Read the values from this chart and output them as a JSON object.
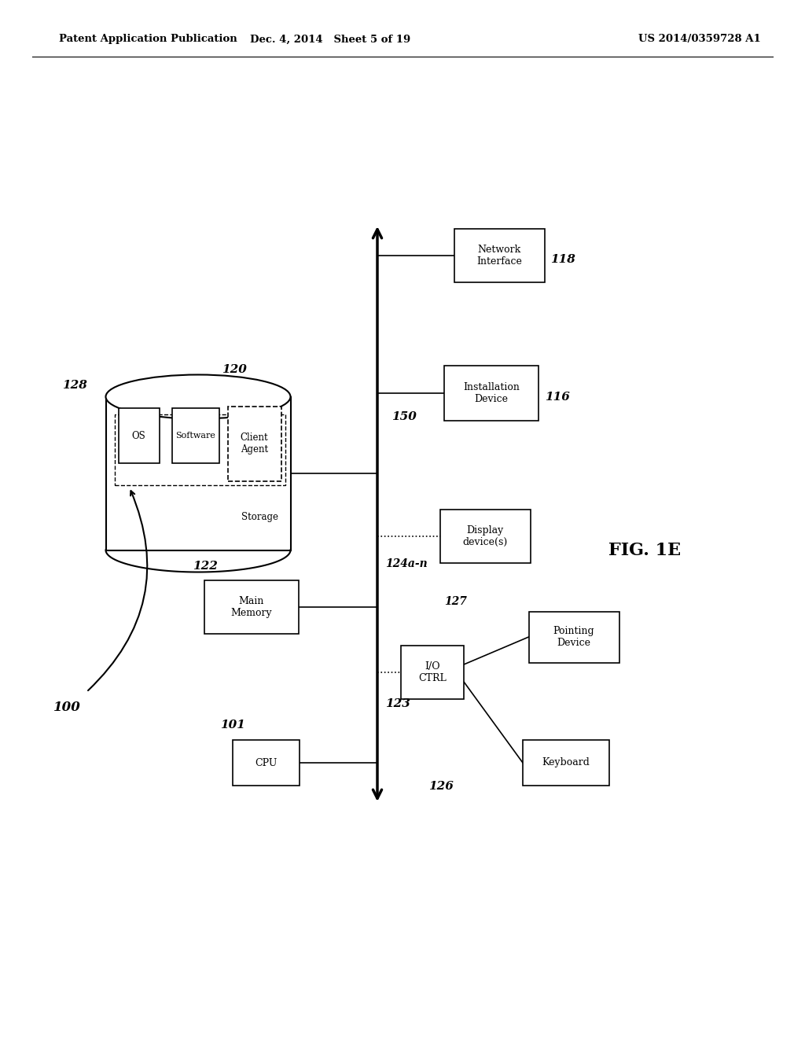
{
  "bg_color": "#ffffff",
  "header_left": "Patent Application Publication",
  "header_mid": "Dec. 4, 2014   Sheet 5 of 19",
  "header_right": "US 2014/0359728 A1",
  "fig_label": "FIG. 1E"
}
